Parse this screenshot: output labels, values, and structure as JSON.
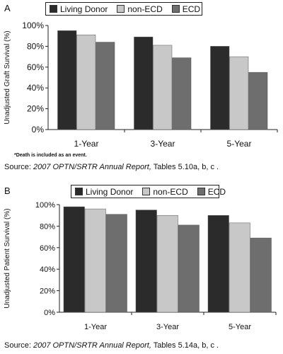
{
  "panels": [
    {
      "letter": "A",
      "footnote": "*Death is included as an event.",
      "source_prefix": "Source: ",
      "source_italic": "2007 OPTN/SRTR Annual Report,",
      "source_suffix": " Tables 5.10a, b, c ."
    },
    {
      "letter": "B",
      "source_prefix": "Source: ",
      "source_italic": "2007 OPTN/SRTR Annual Report,",
      "source_suffix": " Tables 5.14a, b, c ."
    }
  ],
  "colors": {
    "living_donor": "#2b2b2b",
    "non_ecd": "#c8c8c8",
    "ecd": "#6e6e6e",
    "axis": "#222222"
  },
  "chart_data": [
    {
      "type": "bar",
      "categories": [
        "1-Year",
        "3-Year",
        "5-Year"
      ],
      "series": [
        {
          "name": "Living Donor",
          "values": [
            95,
            89,
            80
          ]
        },
        {
          "name": "non-ECD",
          "values": [
            91,
            81,
            70
          ]
        },
        {
          "name": "ECD",
          "values": [
            84,
            69,
            55
          ]
        }
      ],
      "ylabel": "Unadjusted Graft Survival (%)",
      "ylim": [
        0,
        100
      ],
      "yticks": [
        "0%",
        "20%",
        "40%",
        "60%",
        "80%",
        "100%"
      ],
      "legend": "top",
      "grid": false
    },
    {
      "type": "bar",
      "categories": [
        "1-Year",
        "3-Year",
        "5-Year"
      ],
      "series": [
        {
          "name": "Living Donor",
          "values": [
            98,
            95,
            90
          ]
        },
        {
          "name": "non-ECD",
          "values": [
            96,
            90,
            83
          ]
        },
        {
          "name": "ECD",
          "values": [
            91,
            81,
            69
          ]
        }
      ],
      "ylabel": "Unadjusted Patient Survival (%)",
      "ylim": [
        0,
        100
      ],
      "yticks": [
        "0%",
        "20%",
        "40%",
        "60%",
        "80%",
        "100%"
      ],
      "legend": "top",
      "grid": false
    }
  ]
}
